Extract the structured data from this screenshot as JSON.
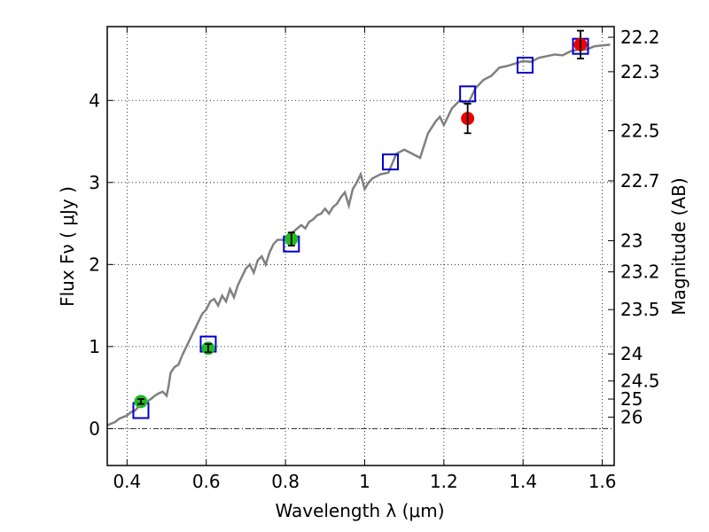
{
  "chart_data": {
    "type": "scatter",
    "xlabel": "Wavelength  λ (μm)",
    "ylabel": "Flux  Fν  ( μJy )",
    "ylabel_right": "Magnitude (AB)",
    "xlim": [
      0.35,
      1.63
    ],
    "ylim": [
      -0.45,
      4.9
    ],
    "grid": true,
    "x_ticks": [
      0.4,
      0.6,
      0.8,
      1.0,
      1.2,
      1.4,
      1.6
    ],
    "x_tick_labels": [
      "0.4",
      "0.6",
      "0.8",
      "1",
      "1.2",
      "1.4",
      "1.6"
    ],
    "y_ticks": [
      0,
      1,
      2,
      3,
      4
    ],
    "y_tick_labels": [
      "0",
      "1",
      "2",
      "3",
      "4"
    ],
    "mag_ticks": [
      {
        "flux": 4.77,
        "label": "22.2"
      },
      {
        "flux": 4.35,
        "label": "22.3"
      },
      {
        "flux": 3.63,
        "label": "22.5"
      },
      {
        "flux": 3.02,
        "label": "22.7"
      },
      {
        "flux": 2.29,
        "label": "23"
      },
      {
        "flux": 1.91,
        "label": "23.2"
      },
      {
        "flux": 1.45,
        "label": "23.5"
      },
      {
        "flux": 0.91,
        "label": "24"
      },
      {
        "flux": 0.58,
        "label": "24.5"
      },
      {
        "flux": 0.36,
        "label": "25"
      },
      {
        "flux": 0.14,
        "label": "26"
      }
    ],
    "series": [
      {
        "kind": "model_spectrum",
        "color": "#808080",
        "x": [
          0.35,
          0.36,
          0.37,
          0.38,
          0.39,
          0.4,
          0.41,
          0.42,
          0.43,
          0.44,
          0.45,
          0.46,
          0.47,
          0.48,
          0.49,
          0.5,
          0.505,
          0.51,
          0.52,
          0.53,
          0.54,
          0.55,
          0.56,
          0.57,
          0.58,
          0.59,
          0.6,
          0.61,
          0.62,
          0.63,
          0.64,
          0.65,
          0.66,
          0.67,
          0.68,
          0.69,
          0.7,
          0.71,
          0.72,
          0.73,
          0.74,
          0.75,
          0.76,
          0.77,
          0.78,
          0.79,
          0.8,
          0.81,
          0.82,
          0.83,
          0.84,
          0.85,
          0.86,
          0.87,
          0.88,
          0.89,
          0.9,
          0.91,
          0.92,
          0.93,
          0.94,
          0.95,
          0.96,
          0.97,
          0.98,
          0.99,
          1.0,
          1.01,
          1.02,
          1.04,
          1.06,
          1.08,
          1.1,
          1.12,
          1.14,
          1.16,
          1.18,
          1.19,
          1.2,
          1.22,
          1.24,
          1.26,
          1.28,
          1.3,
          1.32,
          1.34,
          1.36,
          1.38,
          1.4,
          1.42,
          1.44,
          1.46,
          1.48,
          1.5,
          1.52,
          1.54,
          1.56,
          1.58,
          1.6,
          1.62
        ],
        "y": [
          0.04,
          0.06,
          0.08,
          0.12,
          0.14,
          0.16,
          0.2,
          0.22,
          0.27,
          0.3,
          0.33,
          0.36,
          0.4,
          0.43,
          0.45,
          0.4,
          0.52,
          0.68,
          0.75,
          0.78,
          0.9,
          1.0,
          1.1,
          1.2,
          1.3,
          1.4,
          1.45,
          1.55,
          1.58,
          1.5,
          1.62,
          1.55,
          1.7,
          1.6,
          1.75,
          1.85,
          1.95,
          2.0,
          1.9,
          2.05,
          2.1,
          2.0,
          2.15,
          2.25,
          2.3,
          2.3,
          2.3,
          2.38,
          2.4,
          2.44,
          2.48,
          2.44,
          2.52,
          2.55,
          2.6,
          2.62,
          2.68,
          2.62,
          2.7,
          2.74,
          2.82,
          2.88,
          2.72,
          2.92,
          3.0,
          3.1,
          2.92,
          3.0,
          3.05,
          3.1,
          3.12,
          3.35,
          3.4,
          3.35,
          3.3,
          3.6,
          3.75,
          3.8,
          3.7,
          3.9,
          4.0,
          3.95,
          4.15,
          4.25,
          4.3,
          4.4,
          4.42,
          4.45,
          4.48,
          4.47,
          4.52,
          4.54,
          4.56,
          4.55,
          4.6,
          4.62,
          4.62,
          4.66,
          4.67,
          4.68
        ]
      },
      {
        "kind": "model_photometry",
        "color": "#0000cc",
        "x": [
          0.435,
          0.605,
          0.815,
          1.065,
          1.26,
          1.405,
          1.545
        ],
        "y": [
          0.22,
          1.03,
          2.25,
          3.25,
          4.08,
          4.43,
          4.66
        ]
      },
      {
        "kind": "observed_optical",
        "color": "#22bb22",
        "x": [
          0.435,
          0.605,
          0.815
        ],
        "y": [
          0.33,
          0.98,
          2.31
        ],
        "yerr": [
          0.03,
          0.05,
          0.08
        ]
      },
      {
        "kind": "observed_nir",
        "color": "#ee0000",
        "x": [
          1.26,
          1.545
        ],
        "y": [
          3.78,
          4.68
        ],
        "yerr": [
          0.18,
          0.17
        ]
      }
    ]
  }
}
